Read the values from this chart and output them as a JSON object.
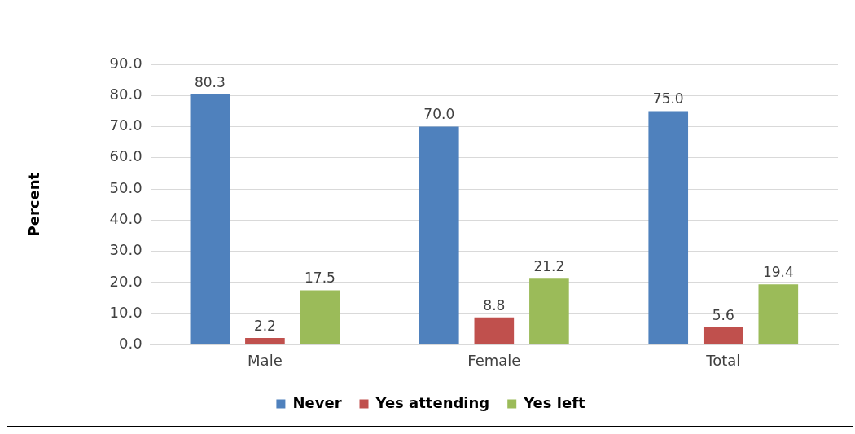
{
  "chart_data": {
    "type": "bar",
    "ylabel": "Percent",
    "categories": [
      "Male",
      "Female",
      "Total"
    ],
    "series": [
      {
        "name": "Never",
        "color": "#4f81bd",
        "values": [
          80.3,
          70.0,
          75.0
        ],
        "value_labels": [
          "80.3",
          "70.0",
          "75.0"
        ]
      },
      {
        "name": "Yes attending",
        "color": "#c0504d",
        "values": [
          2.2,
          8.8,
          5.6
        ],
        "value_labels": [
          "2.2",
          "8.8",
          "5.6"
        ]
      },
      {
        "name": "Yes left",
        "color": "#9bbb59",
        "values": [
          17.5,
          21.2,
          19.4
        ],
        "value_labels": [
          "17.5",
          "21.2",
          "19.4"
        ]
      }
    ],
    "ylim": [
      0,
      90
    ],
    "yticks": [
      {
        "value": 0,
        "label": "0.0"
      },
      {
        "value": 10,
        "label": "10.0"
      },
      {
        "value": 20,
        "label": "20.0"
      },
      {
        "value": 30,
        "label": "30.0"
      },
      {
        "value": 40,
        "label": "40.0"
      },
      {
        "value": 50,
        "label": "50.0"
      },
      {
        "value": 60,
        "label": "60.0"
      },
      {
        "value": 70,
        "label": "70.0"
      },
      {
        "value": 80,
        "label": "80.0"
      },
      {
        "value": 90,
        "label": "90.0"
      }
    ],
    "grid": "y",
    "legend": "bottom"
  }
}
